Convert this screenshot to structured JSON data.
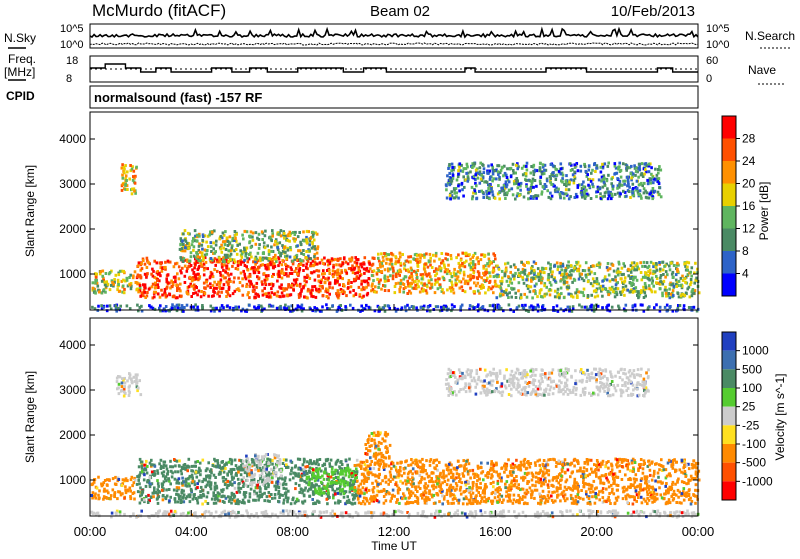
{
  "header": {
    "station": "McMurdo (fitACF)",
    "beam": "Beam 02",
    "date": "10/Feb/2013"
  },
  "sky_panel": {
    "left_label": "N.Sky",
    "right_label": "N.Search",
    "left_ticks": [
      "10^5",
      "10^0"
    ],
    "right_ticks": [
      "10^5",
      "10^0"
    ]
  },
  "freq_panel": {
    "left_label_1": "Freq.",
    "left_label_2": "[MHz]",
    "right_label": "Nave",
    "left_ticks": [
      "18",
      "8"
    ],
    "right_ticks": [
      "60",
      "0"
    ]
  },
  "cpid": {
    "label": "CPID",
    "text": "normalsound (fast) -157 RF"
  },
  "chart_data": [
    {
      "type": "heatmap",
      "quantity": "power",
      "ylabel": "Slant Range [km]",
      "xlabel": "",
      "x_range_hours": [
        0,
        24
      ],
      "ylim": [
        200,
        4600
      ],
      "y_ticks": [
        1000,
        2000,
        3000,
        4000
      ],
      "colorbar_label": "Power [dB]",
      "colorbar_ticks": [
        "4",
        "8",
        "12",
        "16",
        "20",
        "24",
        "28"
      ],
      "colorbar_colors": [
        "#0000ff",
        "#2d63c8",
        "#4a8a64",
        "#5fb55f",
        "#e8d000",
        "#ff9000",
        "#ff5000",
        "#ff0000"
      ],
      "echo_bands": [
        {
          "t0": 0.0,
          "t1": 2.0,
          "r0": 600,
          "r1": 1100,
          "level": 0.55
        },
        {
          "t0": 1.8,
          "t1": 11.0,
          "r0": 500,
          "r1": 1400,
          "level": 0.85
        },
        {
          "t0": 3.5,
          "t1": 9.0,
          "r0": 1300,
          "r1": 2000,
          "level": 0.45
        },
        {
          "t0": 11.0,
          "t1": 16.0,
          "r0": 600,
          "r1": 1500,
          "level": 0.65
        },
        {
          "t0": 16.0,
          "t1": 24.0,
          "r0": 500,
          "r1": 1300,
          "level": 0.45
        },
        {
          "t0": 1.2,
          "t1": 1.8,
          "r0": 2800,
          "r1": 3500,
          "level": 0.6
        },
        {
          "t0": 14.0,
          "t1": 22.5,
          "r0": 2700,
          "r1": 3500,
          "level": 0.3
        },
        {
          "t0": 0.0,
          "t1": 24.0,
          "r0": 200,
          "r1": 350,
          "level": 0.15
        }
      ]
    },
    {
      "type": "heatmap",
      "quantity": "velocity",
      "ylabel": "Slant Range [km]",
      "xlabel": "Time UT",
      "x_ticks": [
        "00:00",
        "04:00",
        "08:00",
        "12:00",
        "16:00",
        "20:00",
        "00:00"
      ],
      "x_range_hours": [
        0,
        24
      ],
      "ylim": [
        200,
        4600
      ],
      "y_ticks": [
        1000,
        2000,
        3000,
        4000
      ],
      "colorbar_label": "Velocity [m s^-1]",
      "colorbar_ticks": [
        "1000",
        "500",
        "100",
        "25",
        "-25",
        "-100",
        "-500",
        "-1000"
      ],
      "colorbar_colors": [
        "#2040c0",
        "#3c6fb0",
        "#4a8a64",
        "#55cc30",
        "#cccccc",
        "#ffe020",
        "#ff8a00",
        "#ff5000",
        "#ff0000"
      ],
      "echo_bands": [
        {
          "t0": 0.0,
          "t1": 1.8,
          "r0": 600,
          "r1": 1100,
          "color": "#ff8a00"
        },
        {
          "t0": 1.8,
          "t1": 10.5,
          "r0": 500,
          "r1": 1500,
          "color": "#4a8a64"
        },
        {
          "t0": 6.0,
          "t1": 7.5,
          "r0": 900,
          "r1": 1600,
          "color": "#cccccc"
        },
        {
          "t0": 8.5,
          "t1": 10.5,
          "r0": 700,
          "r1": 1300,
          "color": "#55cc30"
        },
        {
          "t0": 10.5,
          "t1": 24.0,
          "r0": 500,
          "r1": 1500,
          "color": "#ff8a00"
        },
        {
          "t0": 10.8,
          "t1": 11.8,
          "r0": 1500,
          "r1": 2100,
          "color": "#ff8a00"
        },
        {
          "t0": 1.0,
          "t1": 2.0,
          "r0": 2900,
          "r1": 3400,
          "color": "#cccccc"
        },
        {
          "t0": 14.0,
          "t1": 22.0,
          "r0": 2900,
          "r1": 3500,
          "color": "#cccccc"
        },
        {
          "t0": 0.0,
          "t1": 24.0,
          "r0": 200,
          "r1": 350,
          "color": "#cccccc"
        }
      ]
    }
  ]
}
